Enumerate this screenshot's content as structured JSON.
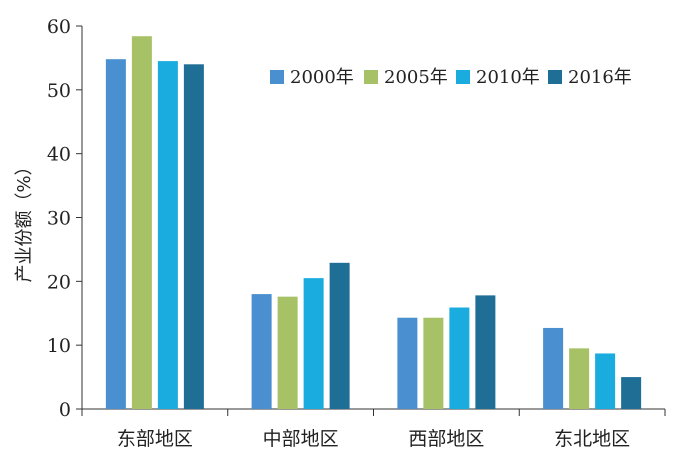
{
  "chart_data": {
    "type": "bar",
    "categories": [
      "东部地区",
      "中部地区",
      "西部地区",
      "东北地区"
    ],
    "series": [
      {
        "name": "2000年",
        "color": "#4a90d0",
        "values": [
          54.8,
          18.0,
          14.3,
          12.7
        ]
      },
      {
        "name": "2005年",
        "color": "#a7c266",
        "values": [
          58.4,
          17.6,
          14.3,
          9.5
        ]
      },
      {
        "name": "2010年",
        "color": "#1aabdf",
        "values": [
          54.5,
          20.5,
          15.9,
          8.7
        ]
      },
      {
        "name": "2016年",
        "color": "#1e6e96",
        "values": [
          54.0,
          22.9,
          17.8,
          5.0
        ]
      }
    ],
    "ylabel": "产业份额（%）",
    "ylim": [
      0,
      60
    ],
    "yticks": [
      0,
      10,
      20,
      30,
      40,
      50,
      60
    ],
    "grid": false,
    "legend_position": "top-right"
  }
}
